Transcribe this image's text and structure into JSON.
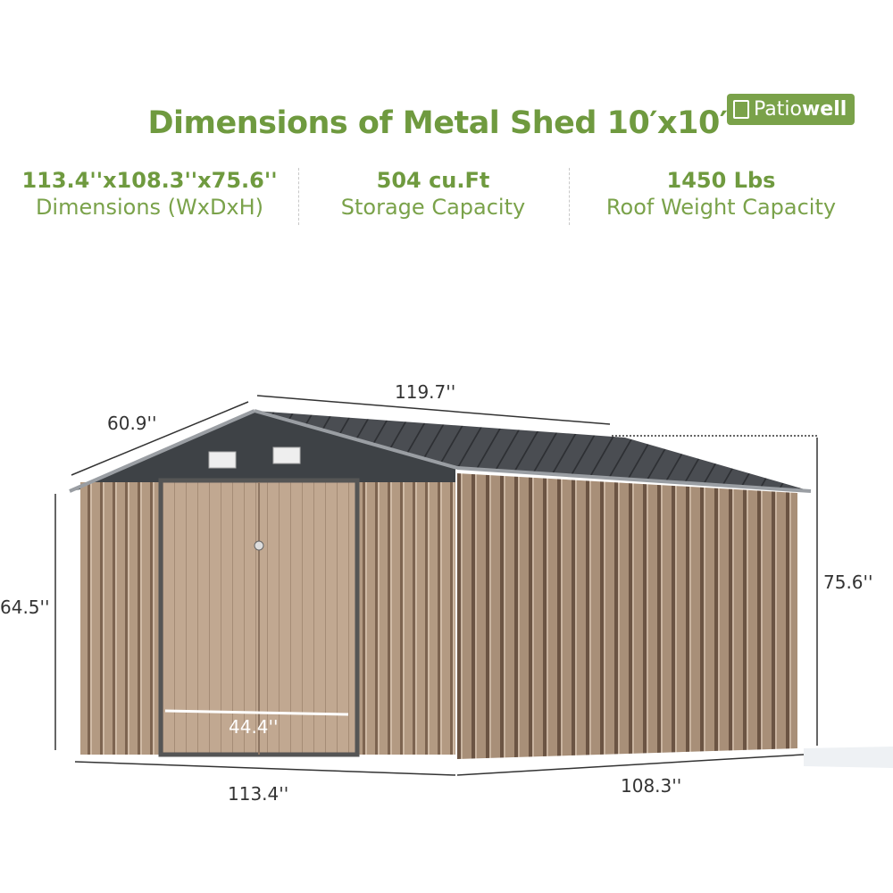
{
  "title": "Dimensions of Metal Shed 10′x10′",
  "brand": {
    "name_light": "Patio",
    "name_bold": "well",
    "color": "#7aa24a"
  },
  "specs": [
    {
      "value": "113.4''x108.3''x75.6''",
      "label": "Dimensions (WxDxH)"
    },
    {
      "value": "504 cu.Ft",
      "label": "Storage Capacity"
    },
    {
      "value": "1450 Lbs",
      "label": "Roof Weight Capacity"
    }
  ],
  "accent": "#6f9a3f",
  "measurements": {
    "roof_depth": "60.9''",
    "roof_length": "119.7''",
    "total_height": "75.6''",
    "wall_height": "64.5''",
    "door_width": "44.4''",
    "width": "113.4''",
    "depth": "108.3''"
  }
}
